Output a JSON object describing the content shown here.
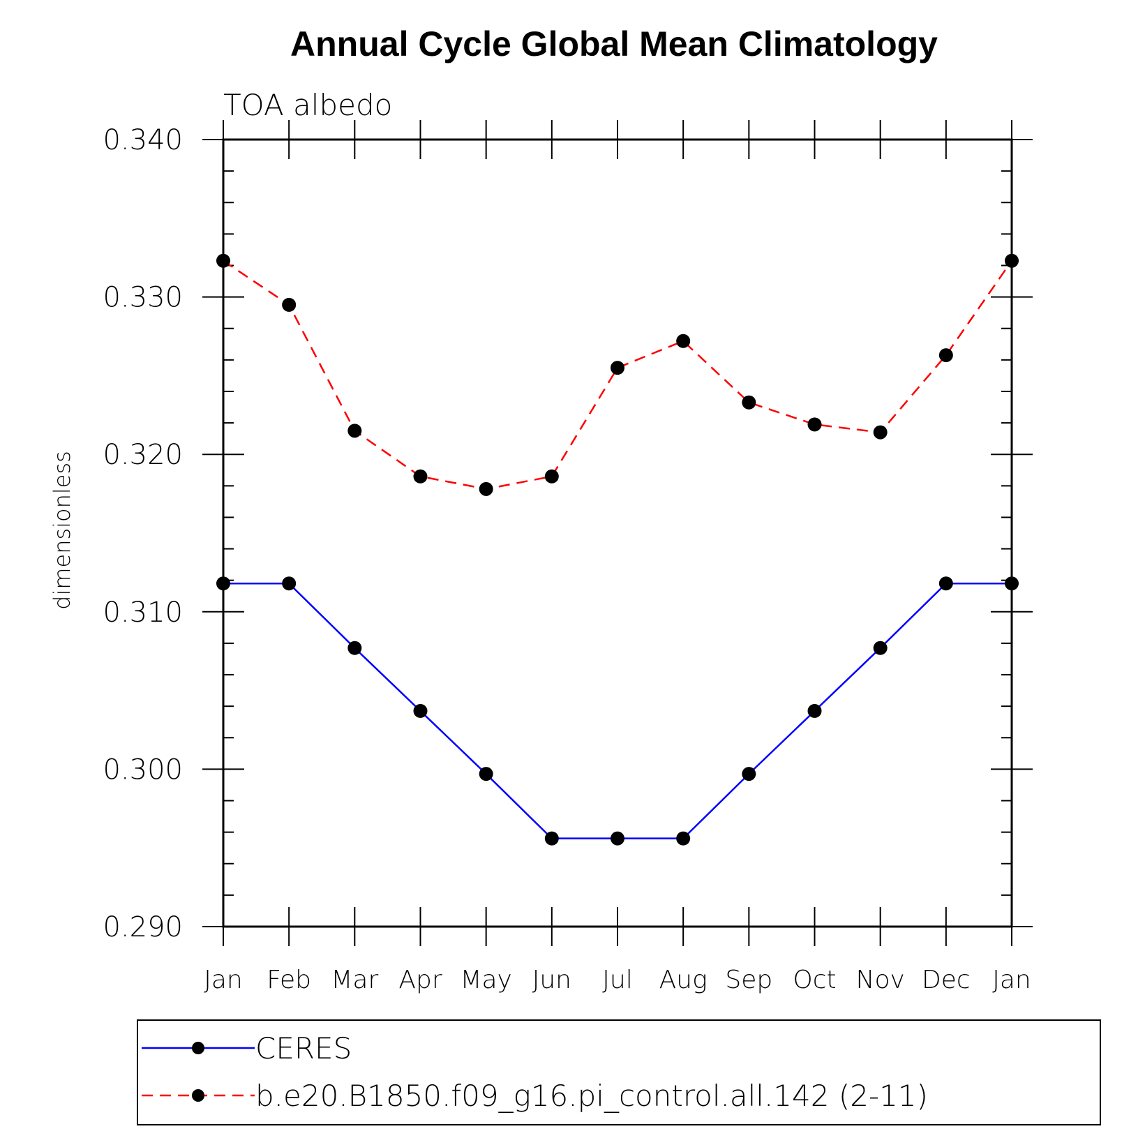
{
  "chart_data": {
    "type": "line",
    "title": "Annual Cycle Global Mean Climatology",
    "subtitle": "TOA albedo",
    "xlabel": "",
    "ylabel": "dimensionless",
    "categories": [
      "Jan",
      "Feb",
      "Mar",
      "Apr",
      "May",
      "Jun",
      "Jul",
      "Aug",
      "Sep",
      "Oct",
      "Nov",
      "Dec",
      "Jan"
    ],
    "ylim": [
      0.29,
      0.34
    ],
    "yticks": [
      "0.290",
      "0.300",
      "0.310",
      "0.320",
      "0.330",
      "0.340"
    ],
    "grid": false,
    "legend_position": "bottom",
    "series": [
      {
        "name": "CERES",
        "color": "#0000ff",
        "line_style": "solid",
        "marker": "filled-circle",
        "values": [
          0.3118,
          0.3118,
          0.3077,
          0.3037,
          0.2997,
          0.2956,
          0.2956,
          0.2956,
          0.2997,
          0.3037,
          0.3077,
          0.3118,
          0.3118
        ]
      },
      {
        "name": "b.e20.B1850.f09_g16.pi_control.all.142 (2-11)",
        "color": "#ff0000",
        "line_style": "dashed",
        "marker": "filled-circle",
        "values": [
          0.3323,
          0.3295,
          0.3215,
          0.3186,
          0.3178,
          0.3186,
          0.3255,
          0.3272,
          0.3233,
          0.3219,
          0.3214,
          0.3263,
          0.3323
        ]
      }
    ]
  }
}
